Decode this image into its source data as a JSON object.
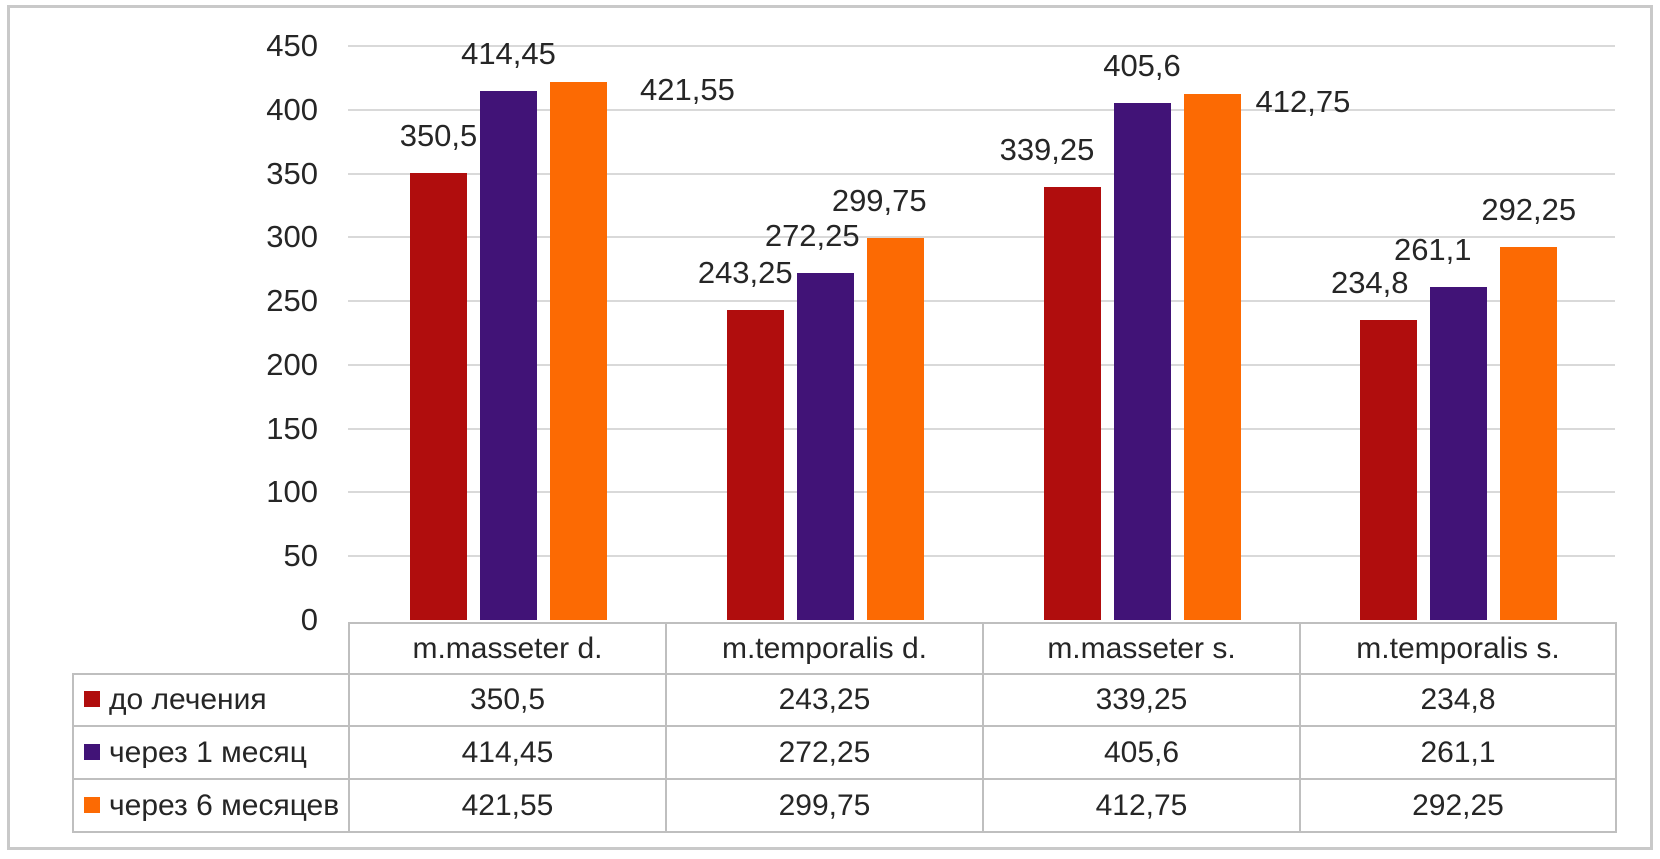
{
  "chart_data": {
    "type": "bar",
    "title": "",
    "categories": [
      "m.masseter d.",
      "m.temporalis d.",
      "m.masseter s.",
      "m.temporalis s."
    ],
    "series": [
      {
        "name": "до лечения",
        "color": "#B00D0D",
        "values": [
          350.5,
          243.25,
          339.25,
          234.8
        ],
        "labels": [
          "350,5",
          "243,25",
          "339,25",
          "234,8"
        ]
      },
      {
        "name": "через 1 месяц",
        "color": "#411377",
        "values": [
          414.45,
          272.25,
          405.6,
          261.1
        ],
        "labels": [
          "414,45",
          "272,25",
          "405,6",
          "261,1"
        ]
      },
      {
        "name": "через 6 месяцев",
        "color": "#FC6A03",
        "values": [
          421.55,
          299.75,
          412.75,
          292.25
        ],
        "labels": [
          "421,55",
          "299,75",
          "412,75",
          "292,25"
        ]
      }
    ],
    "y_axis": {
      "min": 0,
      "max": 450,
      "step": 50,
      "ticks": [
        "0",
        "50",
        "100",
        "150",
        "200",
        "250",
        "300",
        "350",
        "400",
        "450"
      ]
    },
    "grid": true,
    "legend_position": "table-rows-left",
    "decimal_separator": ","
  },
  "colors": {
    "grid": "#D9D9D9",
    "table_border": "#BFBFBF",
    "text": "#262626",
    "figure_border": "#C9C9C9",
    "background": "#FFFFFF"
  }
}
